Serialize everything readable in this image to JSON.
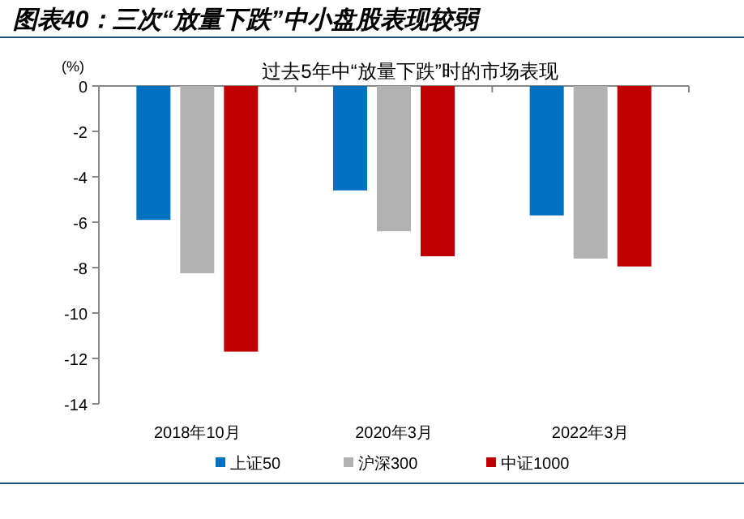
{
  "chart_data": {
    "type": "bar",
    "title": "图表40：三次“放量下跌”中小盘股表现较弱",
    "subtitle": "过去5年中“放量下跌”时的市场表现",
    "ylabel": "(%)",
    "categories": [
      "2018年10月",
      "2020年3月",
      "2022年3月"
    ],
    "series": [
      {
        "name": "上证50",
        "color": "#0070c0",
        "values": [
          -5.9,
          -4.6,
          -5.7
        ]
      },
      {
        "name": "沪深300",
        "color": "#b2b2b2",
        "values": [
          -8.25,
          -6.4,
          -7.6
        ]
      },
      {
        "name": "中证1000",
        "color": "#c00000",
        "values": [
          -11.7,
          -7.5,
          -7.95
        ]
      }
    ],
    "ylim": [
      -14,
      0
    ],
    "yticks": [
      0,
      -2,
      -4,
      -6,
      -8,
      -10,
      -12,
      -14
    ],
    "legend": "bottom",
    "grid": false
  }
}
